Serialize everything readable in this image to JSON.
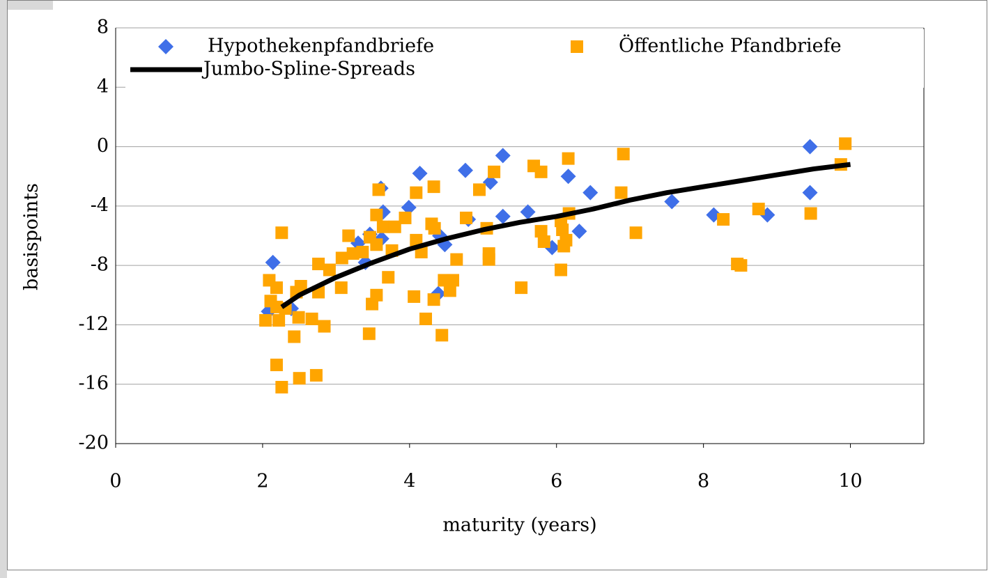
{
  "chart_data": {
    "type": "scatter",
    "xlabel": "maturity (years)",
    "ylabel": "basispoints",
    "xlim": [
      0,
      11
    ],
    "xticks": [
      0,
      2,
      4,
      6,
      8,
      10
    ],
    "ylim": [
      -20,
      8
    ],
    "yticks": [
      -20,
      -16,
      -12,
      -8,
      -4,
      0,
      4,
      8
    ],
    "grid": true,
    "legend": "top",
    "series": [
      {
        "name": "Hypothekenpfandbriefe",
        "color": "#3f6fe8",
        "marker": "diamond",
        "x": [
          2.14,
          2.08,
          2.39,
          3.61,
          3.64,
          3.62,
          3.3,
          3.4,
          3.46,
          3.99,
          4.14,
          4.41,
          4.48,
          4.39,
          4.76,
          4.8,
          5.1,
          5.27,
          5.27,
          5.61,
          5.94,
          6.16,
          6.31,
          6.46,
          7.57,
          8.14,
          8.87,
          9.45,
          9.45
        ],
        "values": [
          -7.8,
          -11.1,
          -10.9,
          -2.8,
          -4.4,
          -6.2,
          -6.5,
          -7.8,
          -5.9,
          -4.1,
          -1.8,
          -6.0,
          -6.6,
          -9.9,
          -1.6,
          -4.9,
          -2.4,
          -0.6,
          -4.7,
          -4.4,
          -6.8,
          -2.0,
          -5.7,
          -3.1,
          -3.7,
          -4.6,
          -4.6,
          0.0,
          -3.1
        ]
      },
      {
        "name": "Öffentliche Pfandbriefe",
        "color": "#ffa500",
        "marker": "square",
        "x": [
          2.09,
          2.04,
          2.11,
          2.19,
          2.19,
          2.22,
          2.19,
          2.26,
          2.26,
          2.31,
          2.43,
          2.46,
          2.49,
          2.52,
          2.5,
          2.67,
          2.73,
          2.76,
          2.76,
          2.84,
          2.91,
          3.07,
          3.08,
          3.17,
          3.23,
          3.36,
          3.45,
          3.49,
          3.46,
          3.55,
          3.55,
          3.58,
          3.55,
          3.64,
          3.71,
          3.76,
          3.8,
          3.94,
          4.06,
          4.09,
          4.09,
          4.16,
          4.22,
          4.3,
          4.33,
          4.33,
          4.34,
          4.44,
          4.47,
          4.55,
          4.59,
          4.64,
          4.77,
          4.95,
          5.05,
          5.08,
          5.08,
          5.15,
          5.52,
          5.69,
          5.79,
          5.79,
          5.83,
          6.06,
          6.06,
          6.08,
          6.1,
          6.13,
          6.16,
          6.17,
          6.88,
          6.91,
          7.08,
          8.27,
          8.46,
          8.51,
          8.75,
          9.46,
          9.87,
          9.93
        ],
        "values": [
          -9.0,
          -11.7,
          -10.4,
          -9.5,
          -10.8,
          -11.7,
          -14.7,
          -16.2,
          -5.8,
          -10.9,
          -12.8,
          -9.8,
          -11.5,
          -9.4,
          -15.6,
          -11.6,
          -15.4,
          -7.9,
          -9.8,
          -12.1,
          -8.3,
          -9.5,
          -7.5,
          -6.0,
          -7.2,
          -7.1,
          -12.6,
          -10.6,
          -6.1,
          -10.0,
          -4.6,
          -2.9,
          -6.6,
          -5.4,
          -8.8,
          -7.0,
          -5.4,
          -4.8,
          -10.1,
          -3.1,
          -6.3,
          -7.1,
          -11.6,
          -5.2,
          -2.7,
          -10.3,
          -5.5,
          -12.7,
          -9.0,
          -9.7,
          -9.0,
          -7.6,
          -4.8,
          -2.9,
          -5.5,
          -7.2,
          -7.6,
          -1.7,
          -9.5,
          -1.3,
          -1.7,
          -5.7,
          -6.4,
          -5.0,
          -8.3,
          -5.6,
          -6.7,
          -6.3,
          -0.8,
          -4.5,
          -3.1,
          -0.5,
          -5.8,
          -4.9,
          -7.9,
          -8.0,
          -4.2,
          -4.5,
          -1.2,
          0.2
        ]
      },
      {
        "name": "Jumbo-Spline-Spreads",
        "color": "#000000",
        "marker": "line",
        "x": [
          2.26,
          2.5,
          3,
          3.5,
          4,
          4.5,
          5,
          5.5,
          6,
          6.5,
          7,
          7.5,
          8,
          8.5,
          9,
          9.5,
          10
        ],
        "values": [
          -10.8,
          -10.0,
          -8.8,
          -7.8,
          -6.9,
          -6.2,
          -5.6,
          -5.1,
          -4.7,
          -4.2,
          -3.6,
          -3.1,
          -2.7,
          -2.3,
          -1.9,
          -1.5,
          -1.2
        ]
      }
    ]
  }
}
